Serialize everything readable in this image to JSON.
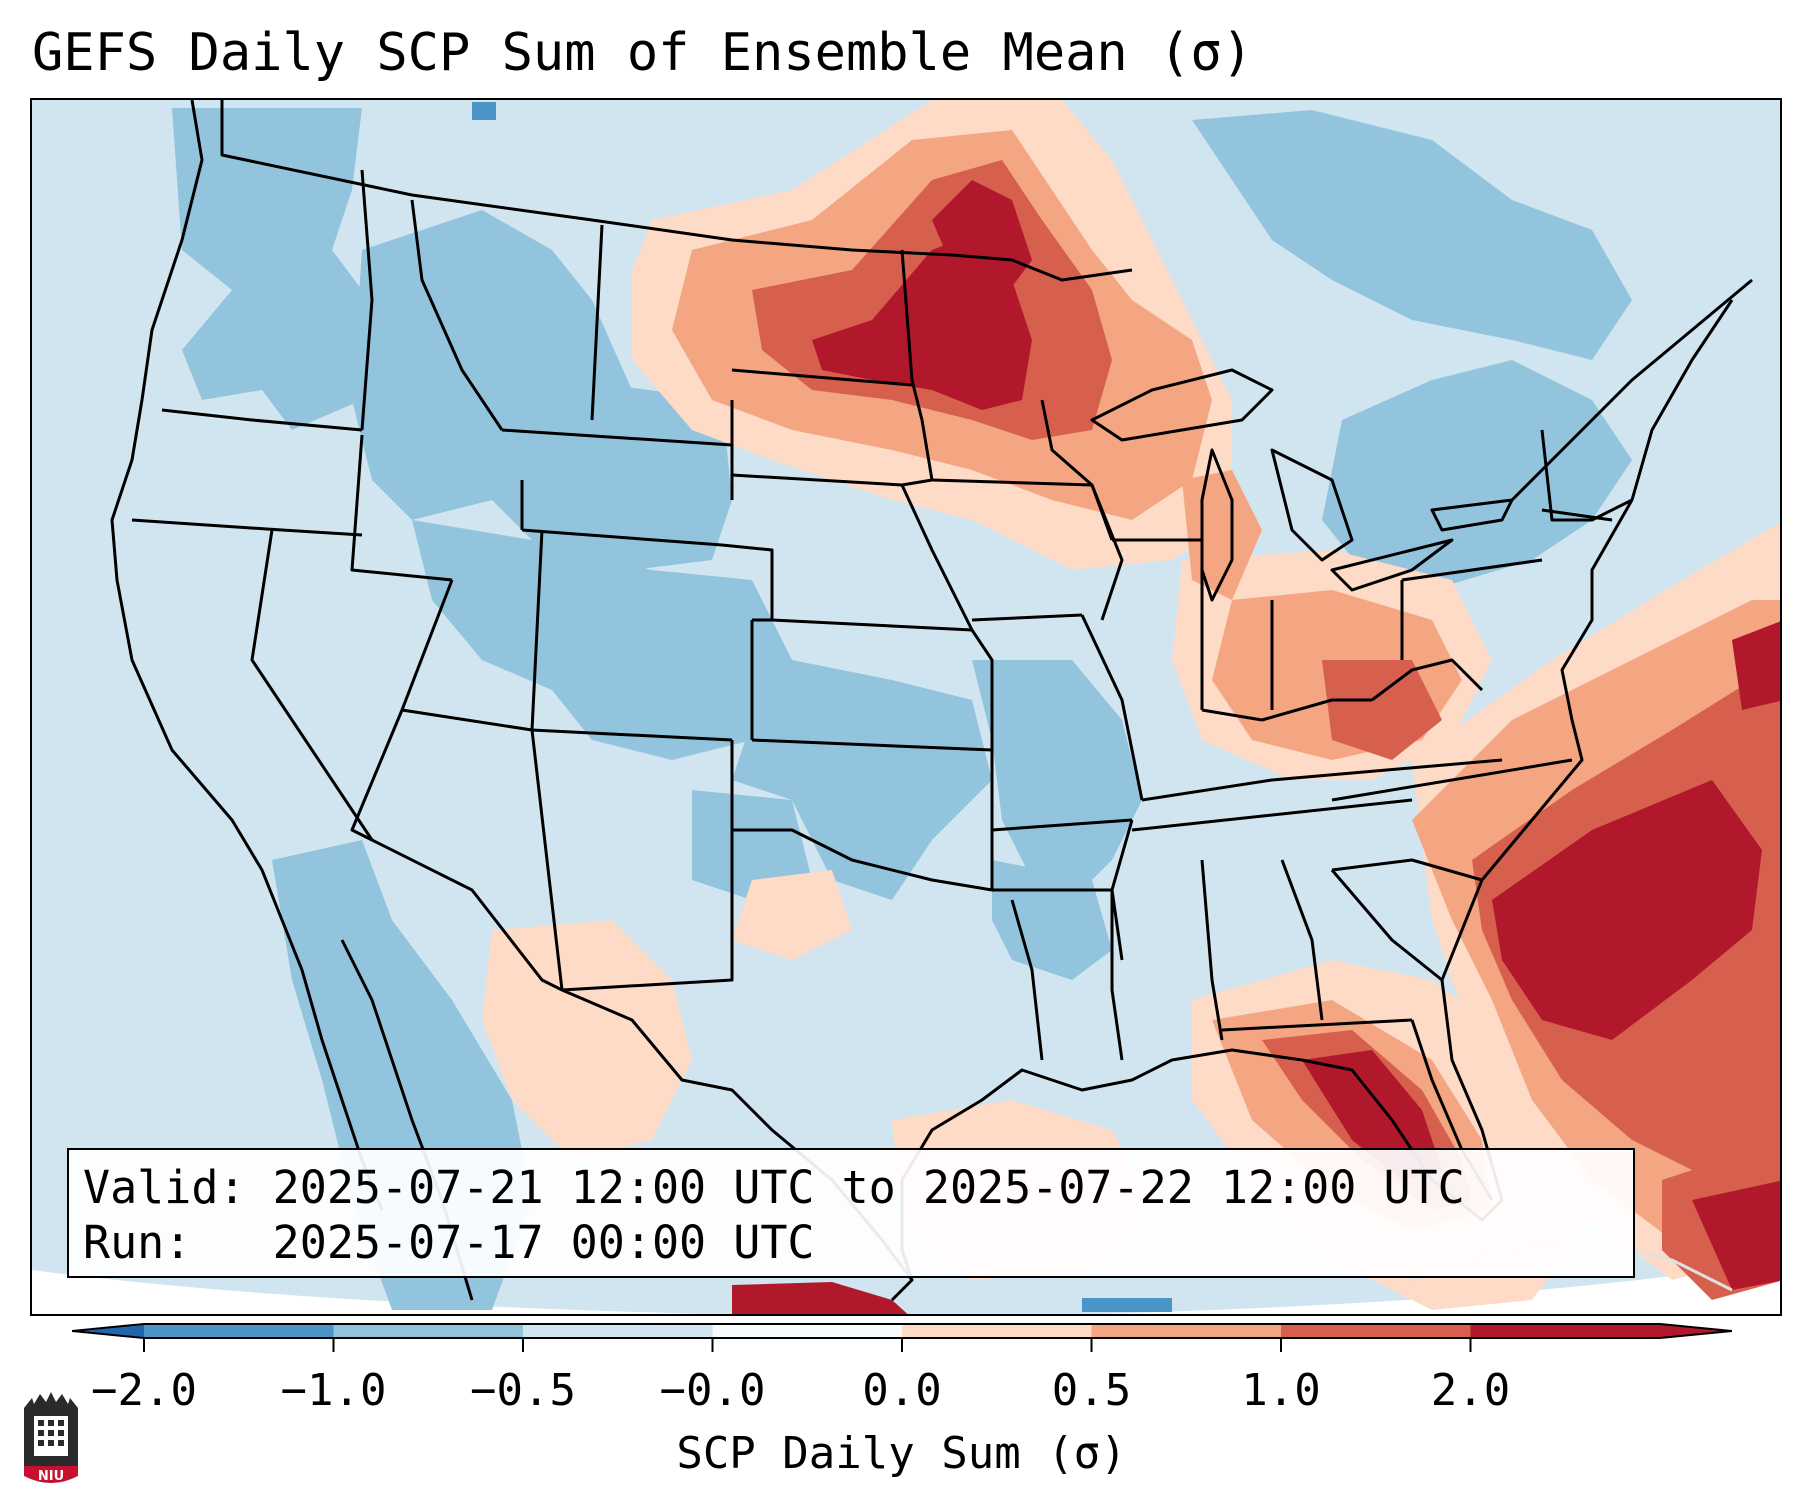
{
  "title": "GEFS Daily SCP Sum of Ensemble Mean (σ)",
  "info": {
    "valid_label": "Valid:",
    "valid_value": "2025-07-21 12:00 UTC to 2025-07-22 12:00 UTC",
    "run_label": "Run:",
    "run_value": "2025-07-17 00:00 UTC"
  },
  "colorbar": {
    "label": "SCP Daily Sum (σ)",
    "ticks": [
      "−2.0",
      "−1.0",
      "−0.5",
      "−0.0",
      "0.0",
      "0.5",
      "1.0",
      "2.0"
    ],
    "colors": [
      "#4b94c6",
      "#92c4de",
      "#d1e5f0",
      "#f8fbfd",
      "#fddbc7",
      "#f4a582",
      "#d6604d",
      "#b2182b"
    ],
    "under_color": "#2166ac",
    "over_color": "#b2182b"
  },
  "logo": {
    "text": "NIU",
    "icon": "niu-castle-logo-icon"
  },
  "map": {
    "region": "Contiguous United States",
    "colors": {
      "ocean": "#d1e5f0",
      "land_background": "#d1e5f0",
      "state_lines": "#000000"
    },
    "anomaly_regions": [
      {
        "name": "northern-plains",
        "level": 2.0
      },
      {
        "name": "upper-midwest",
        "level": 1.0
      },
      {
        "name": "ohio-valley",
        "level": 0.5
      },
      {
        "name": "carolinas-atlantic",
        "level": 2.0
      },
      {
        "name": "florida",
        "level": 2.0
      },
      {
        "name": "gulf-caribbean",
        "level": 0.5
      },
      {
        "name": "northern-rockies",
        "level": -0.5
      },
      {
        "name": "central-rockies",
        "level": -0.5
      },
      {
        "name": "northeast",
        "level": -0.5
      }
    ]
  }
}
